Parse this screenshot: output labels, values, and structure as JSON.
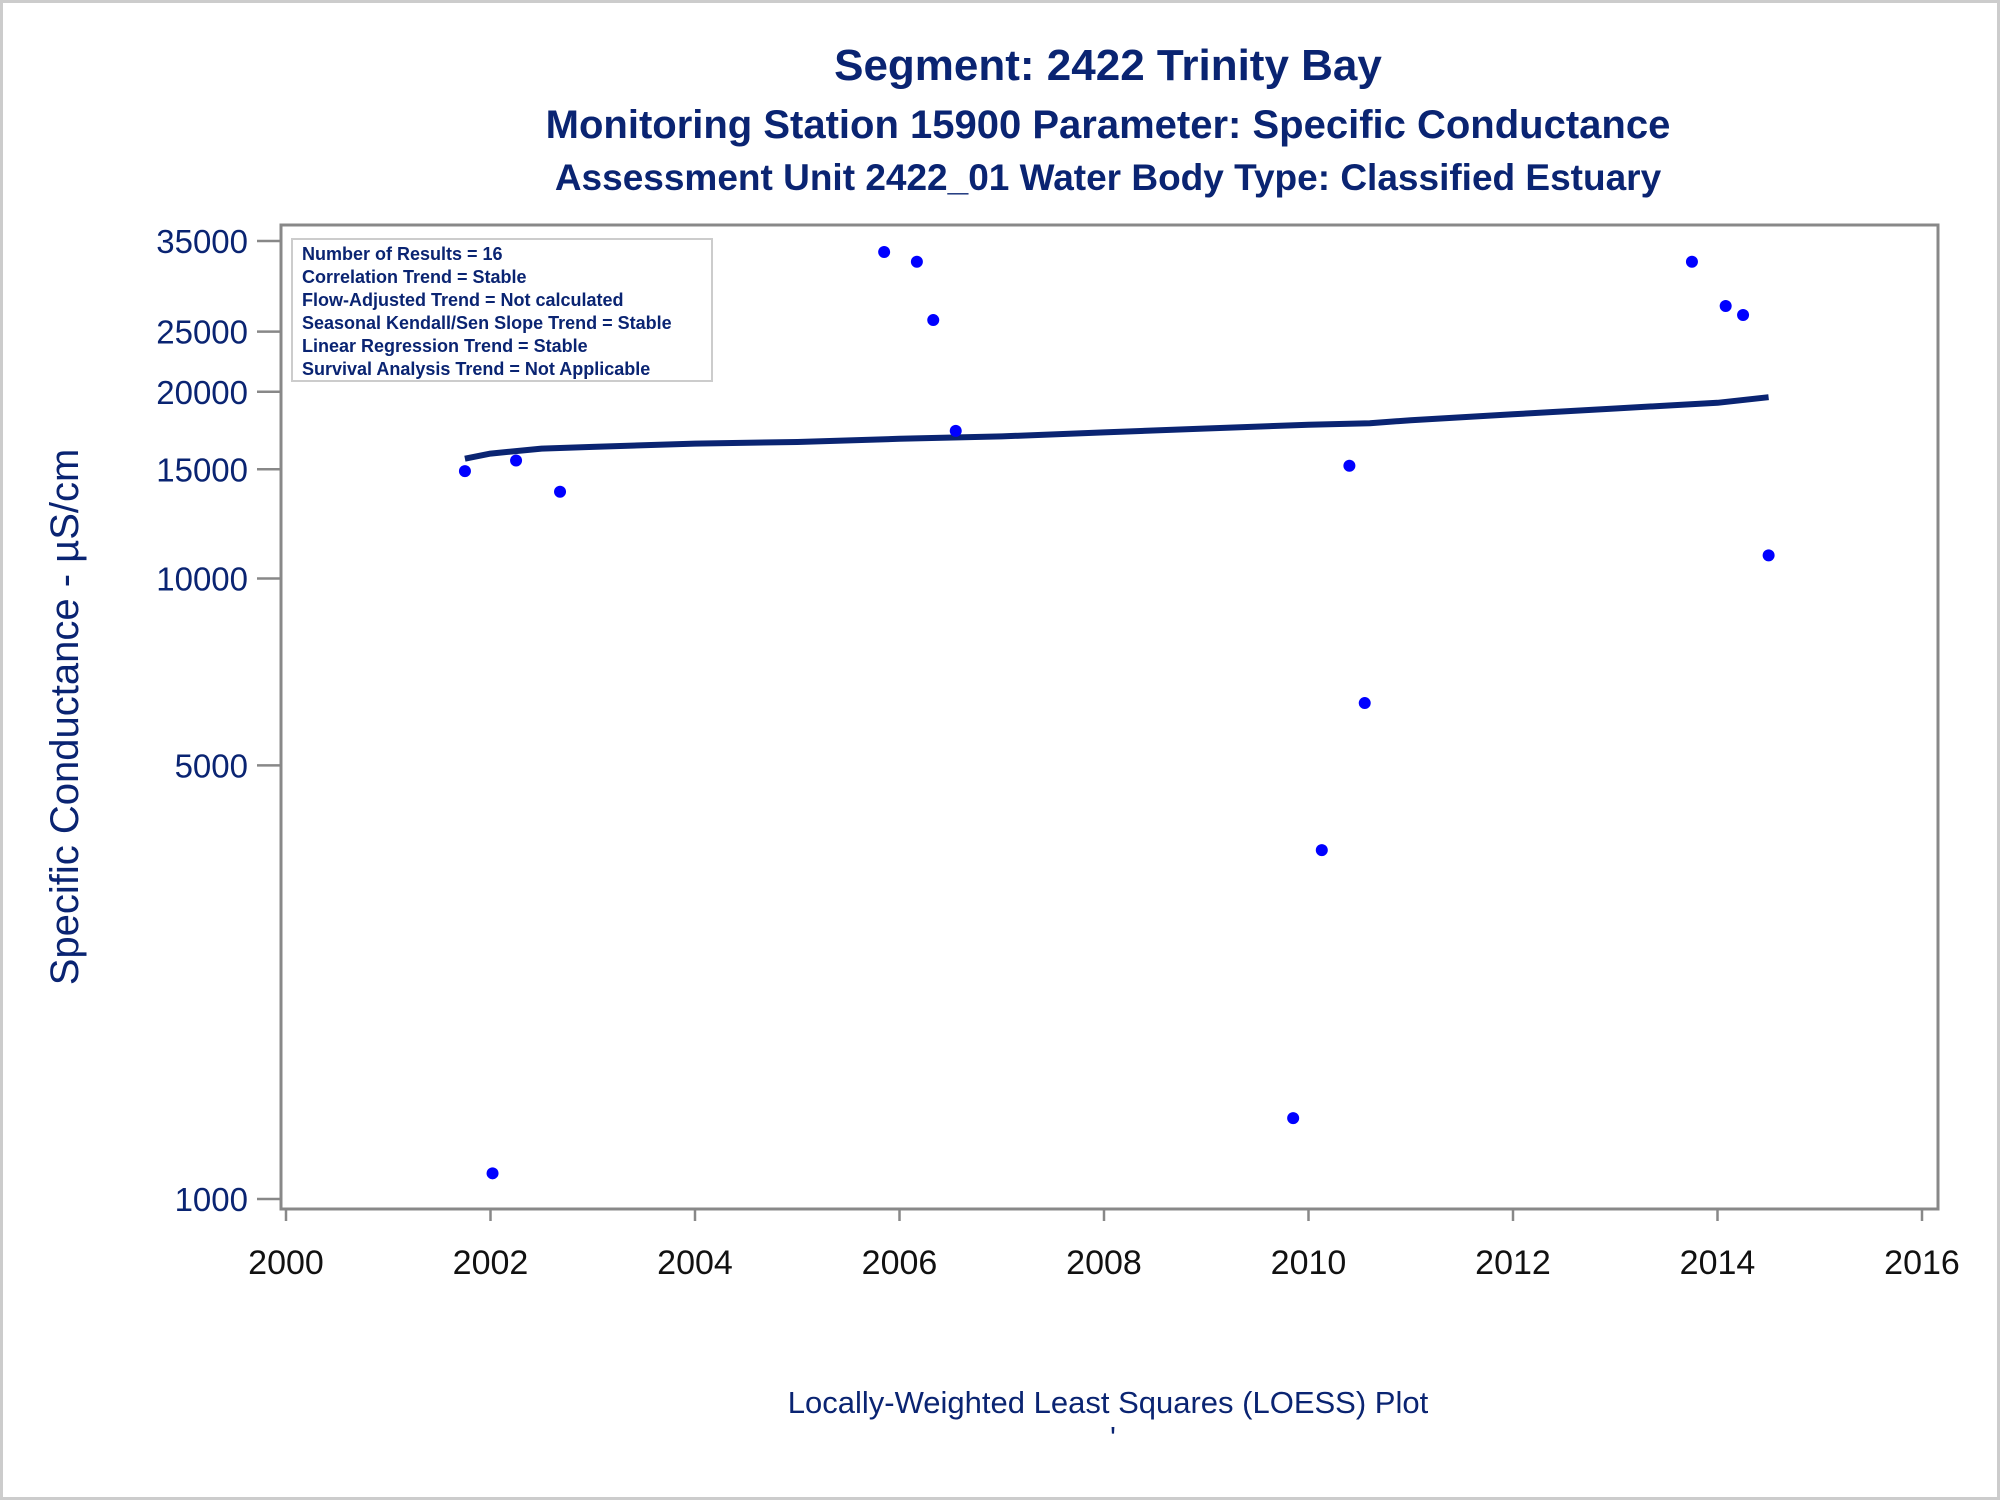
{
  "titles": {
    "line1": "Segment: 2422  Trinity Bay",
    "line2": "Monitoring Station 15900 Parameter: Specific Conductance",
    "line3": "Assessment Unit 2422_01   Water Body Type: Classified Estuary"
  },
  "stats_box": {
    "lines": [
      "Number of Results = 16",
      "Correlation Trend = Stable",
      "Flow-Adjusted Trend = Not calculated",
      "Seasonal Kendall/Sen Slope Trend = Stable",
      "Linear Regression Trend = Stable",
      "Survival Analysis Trend = Not Applicable"
    ]
  },
  "footnote": "Locally-Weighted Least Squares (LOESS) Plot",
  "footnote_mark": "'",
  "chart_data": {
    "type": "scatter",
    "ylabel": "Specific Conductance -  µS/cm",
    "y_scale": "log",
    "xlim": [
      2000,
      2016
    ],
    "ylim": [
      1000,
      35000
    ],
    "x_ticks": [
      2000,
      2002,
      2004,
      2006,
      2008,
      2010,
      2012,
      2014,
      2016
    ],
    "y_ticks": [
      1000,
      5000,
      10000,
      15000,
      20000,
      25000,
      35000
    ],
    "grid": false,
    "colors": {
      "points": "#0000ff",
      "loess": "#0a2472",
      "axis": "#888888",
      "text": "#0a2472"
    },
    "points": [
      {
        "x": 2001.75,
        "y": 14900
      },
      {
        "x": 2002.02,
        "y": 1100
      },
      {
        "x": 2002.25,
        "y": 15500
      },
      {
        "x": 2002.68,
        "y": 13800
      },
      {
        "x": 2005.85,
        "y": 33600
      },
      {
        "x": 2006.17,
        "y": 32400
      },
      {
        "x": 2006.33,
        "y": 26100
      },
      {
        "x": 2006.55,
        "y": 17300
      },
      {
        "x": 2009.85,
        "y": 1350
      },
      {
        "x": 2010.13,
        "y": 3650
      },
      {
        "x": 2010.4,
        "y": 15200
      },
      {
        "x": 2010.55,
        "y": 6300
      },
      {
        "x": 2013.75,
        "y": 32400
      },
      {
        "x": 2014.08,
        "y": 27500
      },
      {
        "x": 2014.25,
        "y": 26600
      },
      {
        "x": 2014.5,
        "y": 10900
      }
    ],
    "series": [
      {
        "type": "line",
        "x": [
          2001.75,
          2002.0,
          2002.5,
          2003.0,
          2004.0,
          2005.0,
          2006.0,
          2007.0,
          2008.0,
          2009.0,
          2010.0,
          2010.6,
          2011.0,
          2012.0,
          2013.0,
          2013.5,
          2014.0,
          2014.5
        ],
        "y": [
          15600,
          15900,
          16200,
          16300,
          16500,
          16600,
          16800,
          16950,
          17200,
          17450,
          17700,
          17800,
          18000,
          18400,
          18800,
          19000,
          19200,
          19600
        ]
      }
    ]
  }
}
